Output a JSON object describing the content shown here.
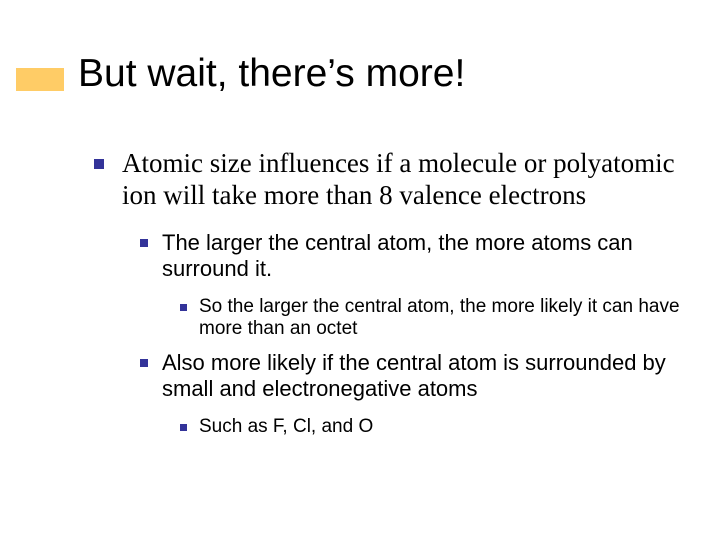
{
  "colors": {
    "accent_bar": "#ffcc66",
    "bullet": "#333399",
    "background": "#ffffff",
    "text": "#000000"
  },
  "typography": {
    "title_font": "Arial",
    "title_size_pt": 39,
    "body_l1_font": "Times New Roman",
    "body_l1_size_pt": 27,
    "body_l2_font": "Arial",
    "body_l2_size_pt": 22,
    "body_l3_font": "Arial",
    "body_l3_size_pt": 19
  },
  "title": "But wait, there’s more!",
  "bullets": {
    "l1_0": "Atomic size influences if a molecule or polyatomic ion will take more than 8 valence electrons",
    "l2_0": "The larger the central atom, the more atoms can surround it.",
    "l3_0": "So the larger the central atom, the more likely it can have more than an octet",
    "l2_1": "Also more likely if the central atom is surrounded by small and electronegative atoms",
    "l3_1": "Such as F, Cl, and O"
  }
}
